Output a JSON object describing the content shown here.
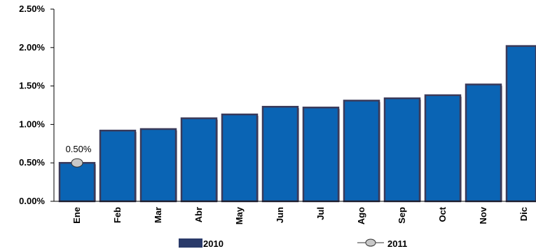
{
  "chart_data": {
    "type": "bar",
    "categories": [
      "Ene",
      "Feb",
      "Mar",
      "Abr",
      "May",
      "Jun",
      "Jul",
      "Ago",
      "Sep",
      "Oct",
      "Nov",
      "Dic"
    ],
    "series": [
      {
        "name": "2010",
        "type": "bar",
        "values": [
          0.5,
          0.92,
          0.94,
          1.08,
          1.13,
          1.23,
          1.22,
          1.31,
          1.34,
          1.38,
          1.52,
          2.02
        ],
        "color": "#0a64b4"
      },
      {
        "name": "2011",
        "type": "line-marker",
        "values": [
          0.5,
          null,
          null,
          null,
          null,
          null,
          null,
          null,
          null,
          null,
          null,
          null
        ],
        "color": "#c8c8c8"
      }
    ],
    "data_labels": [
      "0.50%"
    ],
    "yticks": [
      "0.00%",
      "0.50%",
      "1.00%",
      "1.50%",
      "2.00%",
      "2.50%"
    ],
    "ylim": [
      0,
      2.5
    ],
    "title": "",
    "xlabel": "",
    "ylabel": "",
    "legend_position": "bottom",
    "grid": false,
    "colors": {
      "bar_fill": "#0a64b4",
      "bar_edge": "#3a3a5a",
      "marker_fill": "#c8c8c8",
      "axis": "#000000"
    }
  }
}
